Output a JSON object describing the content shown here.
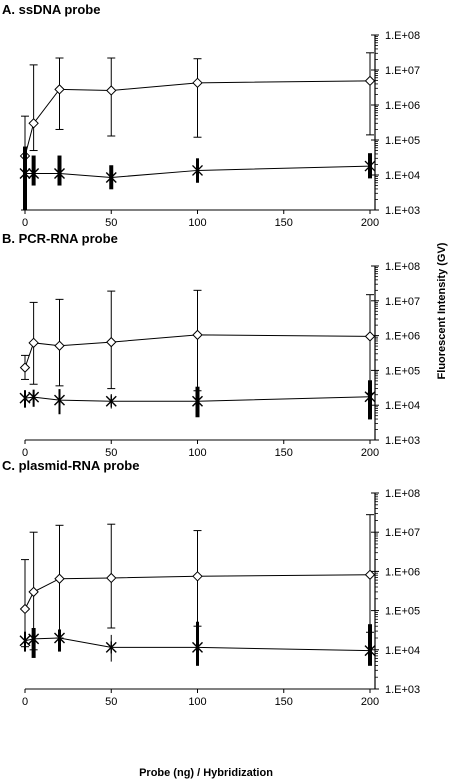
{
  "figure": {
    "ylabel": "Fluorescent Intensity (GV)",
    "xlabel": "Probe (ng) / Hybridization"
  },
  "chart_data": [
    {
      "type": "line",
      "title": "A. ssDNA probe",
      "yscale": "log",
      "ylim": [
        1000,
        100000000
      ],
      "xlim": [
        0,
        200
      ],
      "x_ticks": [
        0,
        50,
        100,
        150,
        200
      ],
      "y_ticks": [
        "1.E+03",
        "1.E+04",
        "1.E+05",
        "1.E+06",
        "1.E+07",
        "1.E+08"
      ],
      "series": [
        {
          "marker": "diamond",
          "x": [
            0,
            5,
            20,
            50,
            100,
            200
          ],
          "y": [
            35000,
            300000,
            2800000,
            2600000,
            4300000,
            4900000
          ],
          "err_low": [
            1000,
            50000,
            200000,
            130000,
            120000,
            140000
          ],
          "err_high": [
            480000,
            14000000,
            22000000,
            22000000,
            21000000,
            31000000
          ]
        },
        {
          "marker": "star",
          "x": [
            0,
            5,
            20,
            50,
            100,
            200
          ],
          "y": [
            11000,
            11000,
            11000,
            8500,
            13500,
            18000
          ],
          "err_low": [
            1000,
            5000,
            5000,
            3900,
            6000,
            8000
          ],
          "err_high": [
            65000,
            36000,
            36000,
            19000,
            30000,
            42000
          ]
        }
      ]
    },
    {
      "type": "line",
      "title": "B. PCR-RNA probe",
      "yscale": "log",
      "ylim": [
        1000,
        100000000
      ],
      "xlim": [
        0,
        200
      ],
      "x_ticks": [
        0,
        50,
        100,
        150,
        200
      ],
      "y_ticks": [
        "1.E+03",
        "1.E+04",
        "1.E+05",
        "1.E+06",
        "1.E+07",
        "1.E+08"
      ],
      "series": [
        {
          "marker": "diamond",
          "x": [
            0,
            5,
            20,
            50,
            100,
            200
          ],
          "y": [
            120000,
            620000,
            510000,
            650000,
            1050000,
            950000
          ],
          "err_low": [
            55000,
            40000,
            36000,
            30000,
            26000,
            22000
          ],
          "err_high": [
            270000,
            9000000,
            11000000,
            19000000,
            20000000,
            15000000
          ]
        },
        {
          "marker": "star",
          "x": [
            0,
            5,
            20,
            50,
            100,
            200
          ],
          "y": [
            16000,
            17000,
            14000,
            13000,
            13000,
            17500
          ],
          "err_low": [
            8500,
            9000,
            5500,
            8000,
            4500,
            3900
          ],
          "err_high": [
            27000,
            28000,
            29000,
            21000,
            34000,
            52000
          ]
        }
      ]
    },
    {
      "type": "line",
      "title": "C. plasmid-RNA probe",
      "yscale": "log",
      "ylim": [
        1000,
        100000000
      ],
      "xlim": [
        0,
        200
      ],
      "x_ticks": [
        0,
        50,
        100,
        150,
        200
      ],
      "y_ticks": [
        "1.E+03",
        "1.E+04",
        "1.E+05",
        "1.E+06",
        "1.E+07",
        "1.E+08"
      ],
      "series": [
        {
          "marker": "diamond",
          "x": [
            0,
            5,
            20,
            50,
            100,
            200
          ],
          "y": [
            110000,
            300000,
            650000,
            680000,
            750000,
            820000
          ],
          "err_low": [
            12000,
            10000,
            20000,
            36000,
            40000,
            28000
          ],
          "err_high": [
            2000000,
            10000000,
            15000000,
            16000000,
            11000000,
            28000000
          ]
        },
        {
          "marker": "star",
          "x": [
            0,
            5,
            20,
            50,
            100,
            200
          ],
          "y": [
            17000,
            19000,
            20000,
            11500,
            11500,
            9500
          ],
          "err_low": [
            9000,
            6200,
            9000,
            5000,
            3900,
            3900
          ],
          "err_high": [
            29000,
            36000,
            33000,
            24000,
            52000,
            45000
          ]
        }
      ]
    }
  ]
}
